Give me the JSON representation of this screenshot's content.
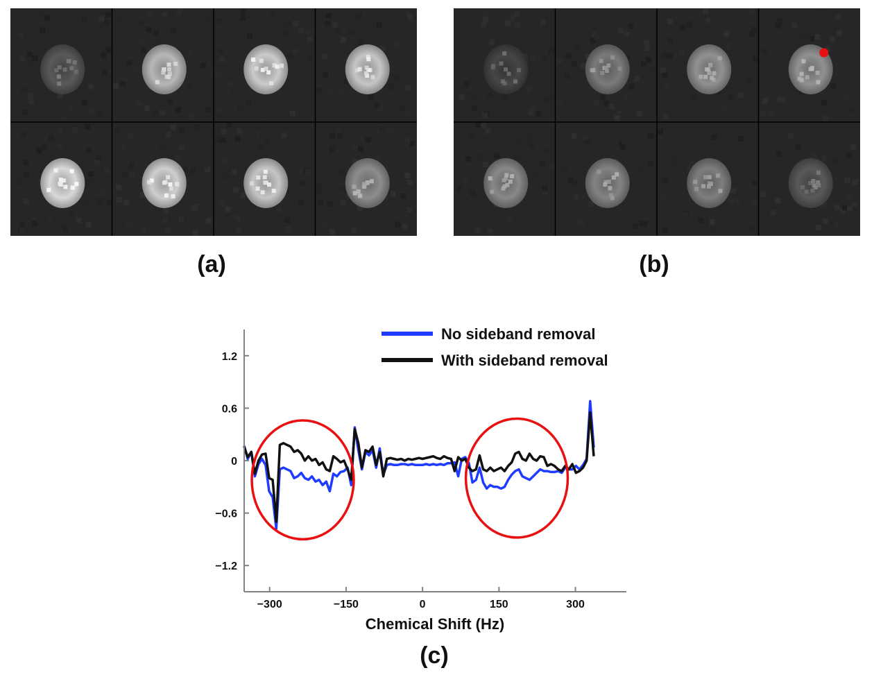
{
  "panels": {
    "a": {
      "label": "(a)"
    },
    "b": {
      "label": "(b)",
      "marker_color": "#e81010"
    },
    "c": {
      "label": "(c)"
    }
  },
  "mri": {
    "rows": 2,
    "cols": 4,
    "a_brightness": [
      0.38,
      0.78,
      0.86,
      0.84,
      0.92,
      0.88,
      0.84,
      0.6
    ],
    "b_brightness": [
      0.3,
      0.52,
      0.62,
      0.62,
      0.58,
      0.56,
      0.54,
      0.38
    ]
  },
  "chart_data": {
    "type": "line",
    "xlabel": "Chemical Shift (Hz)",
    "ylabel": "",
    "xlim": [
      -350,
      400
    ],
    "ylim": [
      -1.5,
      1.5
    ],
    "xticks": [
      -300,
      -150,
      0,
      150,
      300
    ],
    "xtick_labels": [
      "−300",
      "−150",
      "0",
      "150",
      "300"
    ],
    "yticks": [
      1.2,
      0.6,
      0,
      -0.6,
      -1.2
    ],
    "ytick_labels": [
      "1.2",
      "0.6",
      "0",
      "−0.6",
      "−1.2"
    ],
    "legend_position": "top-right",
    "series": [
      {
        "name": "No sideband removal",
        "color": "#1f3cff",
        "points": [
          [
            -350,
            0.17
          ],
          [
            -343,
            0.02
          ],
          [
            -336,
            0.1
          ],
          [
            -329,
            -0.18
          ],
          [
            -322,
            -0.04
          ],
          [
            -315,
            0.02
          ],
          [
            -308,
            -0.05
          ],
          [
            -301,
            -0.35
          ],
          [
            -294,
            -0.42
          ],
          [
            -287,
            -0.78
          ],
          [
            -280,
            -0.1
          ],
          [
            -273,
            -0.08
          ],
          [
            -266,
            -0.1
          ],
          [
            -259,
            -0.12
          ],
          [
            -252,
            -0.2
          ],
          [
            -245,
            -0.18
          ],
          [
            -238,
            -0.14
          ],
          [
            -231,
            -0.2
          ],
          [
            -224,
            -0.22
          ],
          [
            -217,
            -0.18
          ],
          [
            -210,
            -0.24
          ],
          [
            -203,
            -0.22
          ],
          [
            -196,
            -0.28
          ],
          [
            -189,
            -0.24
          ],
          [
            -182,
            -0.35
          ],
          [
            -175,
            -0.15
          ],
          [
            -168,
            -0.18
          ],
          [
            -161,
            -0.13
          ],
          [
            -154,
            -0.12
          ],
          [
            -147,
            -0.08
          ],
          [
            -140,
            -0.28
          ],
          [
            -133,
            0.38
          ],
          [
            -126,
            0.12
          ],
          [
            -119,
            -0.1
          ],
          [
            -112,
            0.1
          ],
          [
            -105,
            0.06
          ],
          [
            -98,
            0.12
          ],
          [
            -91,
            -0.08
          ],
          [
            -84,
            0.14
          ],
          [
            -77,
            -0.16
          ],
          [
            -70,
            -0.05
          ],
          [
            -63,
            -0.04
          ],
          [
            -56,
            -0.05
          ],
          [
            -49,
            -0.05
          ],
          [
            -42,
            -0.04
          ],
          [
            -35,
            -0.04
          ],
          [
            -28,
            -0.05
          ],
          [
            -21,
            -0.04
          ],
          [
            -14,
            -0.05
          ],
          [
            -7,
            -0.05
          ],
          [
            0,
            -0.05
          ],
          [
            7,
            -0.04
          ],
          [
            14,
            -0.05
          ],
          [
            21,
            -0.04
          ],
          [
            28,
            -0.05
          ],
          [
            35,
            -0.04
          ],
          [
            42,
            -0.05
          ],
          [
            49,
            -0.03
          ],
          [
            56,
            -0.03
          ],
          [
            63,
            -0.02
          ],
          [
            70,
            -0.18
          ],
          [
            77,
            0.02
          ],
          [
            84,
            0.04
          ],
          [
            91,
            -0.03
          ],
          [
            98,
            -0.25
          ],
          [
            105,
            -0.22
          ],
          [
            112,
            -0.08
          ],
          [
            119,
            -0.25
          ],
          [
            126,
            -0.32
          ],
          [
            133,
            -0.28
          ],
          [
            140,
            -0.3
          ],
          [
            147,
            -0.3
          ],
          [
            154,
            -0.32
          ],
          [
            161,
            -0.3
          ],
          [
            168,
            -0.22
          ],
          [
            175,
            -0.16
          ],
          [
            182,
            -0.12
          ],
          [
            189,
            -0.1
          ],
          [
            196,
            -0.18
          ],
          [
            203,
            -0.2
          ],
          [
            210,
            -0.22
          ],
          [
            217,
            -0.18
          ],
          [
            224,
            -0.14
          ],
          [
            231,
            -0.1
          ],
          [
            238,
            -0.12
          ],
          [
            245,
            -0.12
          ],
          [
            252,
            -0.13
          ],
          [
            259,
            -0.13
          ],
          [
            266,
            -0.12
          ],
          [
            273,
            -0.14
          ],
          [
            280,
            -0.08
          ],
          [
            287,
            -0.1
          ],
          [
            294,
            -0.1
          ],
          [
            301,
            -0.06
          ],
          [
            308,
            -0.1
          ],
          [
            315,
            -0.05
          ],
          [
            322,
            0.02
          ],
          [
            329,
            0.68
          ],
          [
            336,
            0.15
          ]
        ]
      },
      {
        "name": "With sideband removal",
        "color": "#111111",
        "points": [
          [
            -350,
            0.16
          ],
          [
            -343,
            0.04
          ],
          [
            -336,
            0.1
          ],
          [
            -329,
            -0.15
          ],
          [
            -322,
            0.0
          ],
          [
            -315,
            0.07
          ],
          [
            -308,
            0.08
          ],
          [
            -301,
            -0.2
          ],
          [
            -294,
            -0.22
          ],
          [
            -287,
            -0.7
          ],
          [
            -280,
            0.18
          ],
          [
            -273,
            0.2
          ],
          [
            -266,
            0.18
          ],
          [
            -259,
            0.16
          ],
          [
            -252,
            0.1
          ],
          [
            -245,
            0.12
          ],
          [
            -238,
            0.08
          ],
          [
            -231,
            0.0
          ],
          [
            -224,
            0.05
          ],
          [
            -217,
            0.0
          ],
          [
            -210,
            0.02
          ],
          [
            -203,
            -0.05
          ],
          [
            -196,
            -0.02
          ],
          [
            -189,
            -0.1
          ],
          [
            -182,
            -0.12
          ],
          [
            -175,
            0.05
          ],
          [
            -168,
            0.02
          ],
          [
            -161,
            -0.02
          ],
          [
            -154,
            0.0
          ],
          [
            -147,
            -0.1
          ],
          [
            -140,
            -0.22
          ],
          [
            -133,
            0.36
          ],
          [
            -126,
            0.2
          ],
          [
            -119,
            -0.08
          ],
          [
            -112,
            0.12
          ],
          [
            -105,
            0.1
          ],
          [
            -98,
            0.16
          ],
          [
            -91,
            -0.05
          ],
          [
            -84,
            0.1
          ],
          [
            -77,
            -0.18
          ],
          [
            -70,
            0.02
          ],
          [
            -63,
            0.03
          ],
          [
            -56,
            0.02
          ],
          [
            -49,
            0.01
          ],
          [
            -42,
            0.02
          ],
          [
            -35,
            0.0
          ],
          [
            -28,
            0.02
          ],
          [
            -21,
            0.01
          ],
          [
            -14,
            0.02
          ],
          [
            -7,
            0.03
          ],
          [
            0,
            0.02
          ],
          [
            7,
            0.03
          ],
          [
            14,
            0.04
          ],
          [
            21,
            0.05
          ],
          [
            28,
            0.03
          ],
          [
            35,
            0.02
          ],
          [
            42,
            0.05
          ],
          [
            49,
            0.03
          ],
          [
            56,
            0.02
          ],
          [
            63,
            -0.12
          ],
          [
            70,
            0.04
          ],
          [
            77,
            0.0
          ],
          [
            84,
            0.02
          ],
          [
            91,
            -0.08
          ],
          [
            98,
            -0.12
          ],
          [
            105,
            -0.1
          ],
          [
            112,
            0.06
          ],
          [
            119,
            -0.1
          ],
          [
            126,
            -0.12
          ],
          [
            133,
            -0.08
          ],
          [
            140,
            -0.12
          ],
          [
            147,
            -0.1
          ],
          [
            154,
            -0.08
          ],
          [
            161,
            -0.12
          ],
          [
            168,
            -0.06
          ],
          [
            175,
            -0.02
          ],
          [
            182,
            0.08
          ],
          [
            189,
            0.1
          ],
          [
            196,
            0.02
          ],
          [
            203,
            0.0
          ],
          [
            210,
            0.08
          ],
          [
            217,
            0.02
          ],
          [
            224,
            0.0
          ],
          [
            231,
            0.05
          ],
          [
            238,
            0.04
          ],
          [
            245,
            -0.06
          ],
          [
            252,
            -0.04
          ],
          [
            259,
            -0.06
          ],
          [
            266,
            -0.1
          ],
          [
            273,
            -0.12
          ],
          [
            280,
            -0.06
          ],
          [
            287,
            -0.1
          ],
          [
            294,
            -0.04
          ],
          [
            301,
            -0.14
          ],
          [
            308,
            -0.12
          ],
          [
            315,
            -0.08
          ],
          [
            322,
            0.0
          ],
          [
            329,
            0.55
          ],
          [
            336,
            0.05
          ]
        ]
      }
    ],
    "annotations": [
      {
        "shape": "ellipse",
        "color": "#e81010",
        "cx": -235,
        "cy": -0.22,
        "rx": 100,
        "ry": 0.68
      },
      {
        "shape": "ellipse",
        "color": "#e81010",
        "cx": 185,
        "cy": -0.2,
        "rx": 100,
        "ry": 0.68
      }
    ]
  }
}
